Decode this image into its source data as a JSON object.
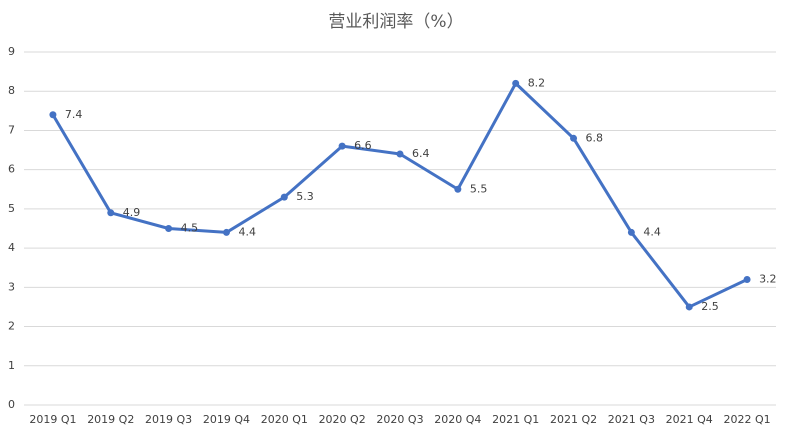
{
  "chart_data": {
    "type": "line",
    "title": "营业利润率（%）",
    "categories": [
      "2019 Q1",
      "2019 Q2",
      "2019 Q3",
      "2019 Q4",
      "2020 Q1",
      "2020 Q2",
      "2020 Q3",
      "2020 Q4",
      "2021 Q1",
      "2021 Q2",
      "2021 Q3",
      "2021 Q4",
      "2022 Q1"
    ],
    "series": [
      {
        "name": "营业利润率",
        "color": "#4472c4",
        "values": [
          7.4,
          4.9,
          4.5,
          4.4,
          5.3,
          6.6,
          6.4,
          5.5,
          8.2,
          6.8,
          4.4,
          2.5,
          3.2
        ]
      }
    ],
    "ylim": [
      0,
      9
    ],
    "yticks": [
      0,
      1,
      2,
      3,
      4,
      5,
      6,
      7,
      8,
      9
    ],
    "grid": true
  }
}
